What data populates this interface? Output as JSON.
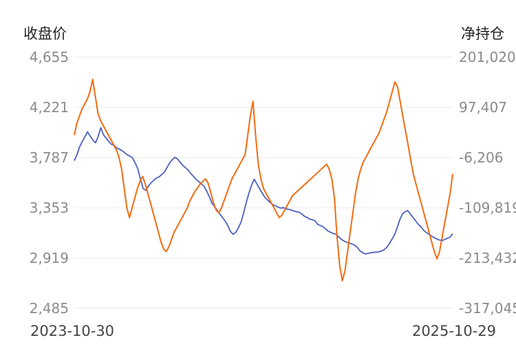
{
  "chart_data": {
    "type": "line",
    "left_axis_title": "收盘价",
    "right_axis_title": "净持仓",
    "left_ticks": [
      "4,655",
      "4,221",
      "3,787",
      "3,353",
      "2,919",
      "2,485"
    ],
    "right_ticks": [
      "201,020",
      "97,407",
      "-6,206",
      "-109,819",
      "-213,432",
      "-317,045"
    ],
    "ylim_left": [
      2485,
      4655
    ],
    "ylim_right": [
      -317045,
      201020
    ],
    "x_start_label": "2023-10-30",
    "x_end_label": "2025-10-29",
    "grid": true,
    "colors": {
      "close": "#4a5fc1",
      "net_position": "#f26a0f"
    },
    "series": [
      {
        "key": "close",
        "axis": "left",
        "values": [
          3760,
          3812,
          3880,
          3925,
          3968,
          4010,
          3972,
          3940,
          3915,
          3968,
          4045,
          3985,
          3955,
          3928,
          3902,
          3895,
          3870,
          3860,
          3848,
          3830,
          3812,
          3800,
          3785,
          3740,
          3690,
          3600,
          3520,
          3505,
          3540,
          3570,
          3590,
          3610,
          3620,
          3640,
          3660,
          3700,
          3740,
          3768,
          3790,
          3775,
          3748,
          3720,
          3700,
          3680,
          3650,
          3625,
          3600,
          3580,
          3560,
          3540,
          3500,
          3450,
          3395,
          3365,
          3330,
          3300,
          3270,
          3240,
          3200,
          3150,
          3125,
          3140,
          3180,
          3230,
          3310,
          3400,
          3480,
          3550,
          3600,
          3560,
          3520,
          3480,
          3445,
          3420,
          3400,
          3380,
          3370,
          3360,
          3350,
          3355,
          3345,
          3340,
          3335,
          3325,
          3320,
          3315,
          3300,
          3280,
          3270,
          3255,
          3250,
          3240,
          3210,
          3200,
          3190,
          3170,
          3150,
          3140,
          3130,
          3125,
          3100,
          3080,
          3065,
          3055,
          3048,
          3040,
          3030,
          3010,
          2980,
          2965,
          2955,
          2960,
          2965,
          2968,
          2970,
          2972,
          2980,
          2990,
          3010,
          3040,
          3080,
          3120,
          3180,
          3250,
          3300,
          3320,
          3330,
          3300,
          3270,
          3240,
          3210,
          3190,
          3160,
          3140,
          3125,
          3110,
          3095,
          3085,
          3075,
          3070,
          3080,
          3090,
          3100,
          3130
        ]
      },
      {
        "key": "net_position",
        "axis": "right",
        "values": [
          40000,
          65000,
          80000,
          95000,
          105000,
          115000,
          130000,
          155000,
          120000,
          85000,
          70000,
          60000,
          50000,
          40000,
          30000,
          20000,
          10000,
          -5000,
          -30000,
          -70000,
          -110000,
          -130000,
          -110000,
          -90000,
          -70000,
          -55000,
          -45000,
          -60000,
          -80000,
          -100000,
          -120000,
          -140000,
          -160000,
          -180000,
          -195000,
          -200000,
          -190000,
          -175000,
          -160000,
          -150000,
          -140000,
          -130000,
          -120000,
          -110000,
          -95000,
          -85000,
          -75000,
          -68000,
          -60000,
          -55000,
          -50000,
          -60000,
          -80000,
          -100000,
          -115000,
          -120000,
          -110000,
          -95000,
          -80000,
          -65000,
          -50000,
          -40000,
          -30000,
          -20000,
          -10000,
          0,
          40000,
          80000,
          110000,
          40000,
          -20000,
          -50000,
          -70000,
          -80000,
          -90000,
          -100000,
          -110000,
          -120000,
          -130000,
          -125000,
          -115000,
          -105000,
          -95000,
          -85000,
          -80000,
          -75000,
          -70000,
          -65000,
          -60000,
          -55000,
          -50000,
          -45000,
          -40000,
          -35000,
          -30000,
          -25000,
          -20000,
          -30000,
          -50000,
          -90000,
          -170000,
          -230000,
          -260000,
          -240000,
          -200000,
          -160000,
          -120000,
          -80000,
          -50000,
          -30000,
          -15000,
          -5000,
          5000,
          15000,
          25000,
          35000,
          45000,
          60000,
          75000,
          90000,
          110000,
          130000,
          150000,
          140000,
          110000,
          80000,
          50000,
          20000,
          -10000,
          -40000,
          -60000,
          -80000,
          -100000,
          -120000,
          -140000,
          -160000,
          -180000,
          -200000,
          -215000,
          -200000,
          -170000,
          -140000,
          -110000,
          -80000,
          -40000
        ]
      }
    ]
  }
}
